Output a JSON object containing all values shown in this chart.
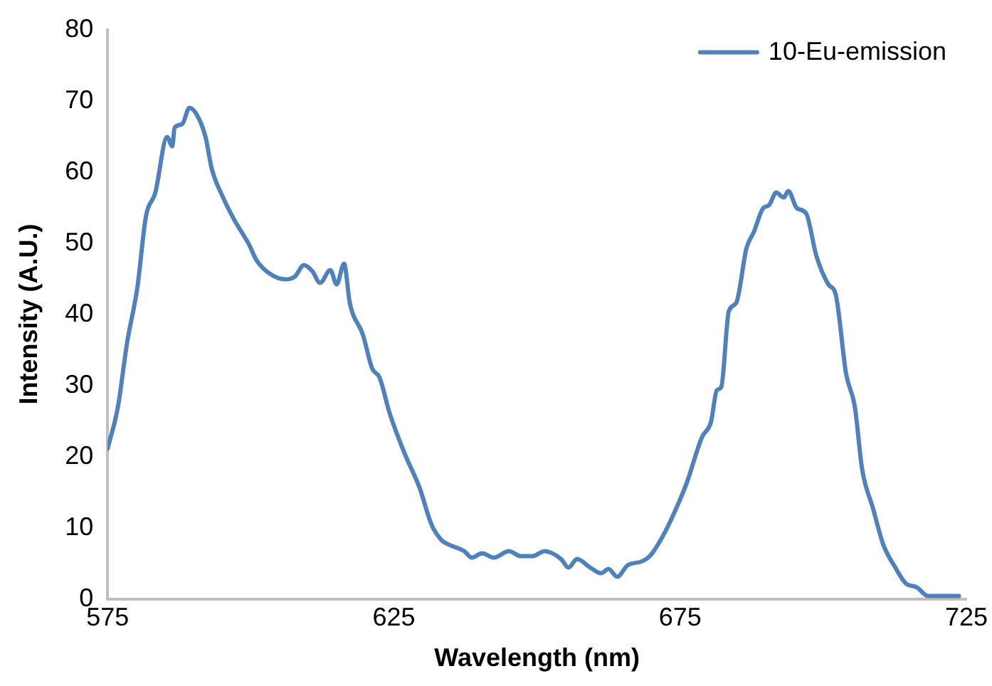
{
  "chart_data": {
    "type": "line",
    "xlabel": "Wavelength (nm)",
    "ylabel": "Intensity (A.U.)",
    "xlim": [
      575,
      725
    ],
    "xticks": [
      575,
      625,
      675,
      725
    ],
    "ylim": [
      0,
      80
    ],
    "yticks": [
      0,
      10,
      20,
      30,
      40,
      50,
      60,
      70,
      80
    ],
    "grid": false,
    "legend": "top right",
    "marker": "none",
    "line_style": "solid",
    "series": [
      {
        "name": "10-Eu-emission",
        "color": "#4f81bd",
        "x": [
          575,
          576.8,
          578.4,
          580.2,
          581.7,
          583.3,
          585.4,
          586.3,
          586.7,
          588,
          589.3,
          590.6,
          592.1,
          593.2,
          595,
          597.1,
          599.7,
          601,
          603.5,
          606.1,
          607.7,
          609.3,
          610.8,
          612.1,
          613.9,
          615,
          616.3,
          617.3,
          619.6,
          621.2,
          622.5,
          624.3,
          626.9,
          629.5,
          631.6,
          633.4,
          634.7,
          637.3,
          638.6,
          640.4,
          642.5,
          645.1,
          647.2,
          649.2,
          651.3,
          654.2,
          655.5,
          657,
          659.3,
          661.2,
          662.5,
          664,
          665.8,
          668.4,
          669.7,
          672.3,
          674.9,
          676.2,
          678.8,
          680.4,
          681.4,
          682.2,
          683.5,
          684.8,
          686.6,
          687.9,
          689.5,
          690.5,
          691.8,
          693.1,
          693.9,
          695.4,
          697,
          698.8,
          700.9,
          702.2,
          704,
          705.5,
          706.8,
          708.7,
          710.5,
          712.6,
          714.4,
          716.4,
          718.3,
          720.3,
          723.7
        ],
        "values": [
          21.1,
          27,
          36,
          43.8,
          53.8,
          57,
          64.9,
          63.6,
          66.2,
          66.7,
          69,
          68,
          64.9,
          60.4,
          56.7,
          53.3,
          49.8,
          47.6,
          45.6,
          44.9,
          45.3,
          46.9,
          46,
          44.4,
          46.2,
          44.2,
          47.1,
          41.6,
          37.1,
          32.4,
          31.1,
          26,
          20.4,
          15.6,
          10.4,
          8.2,
          7.6,
          6.7,
          5.8,
          6.4,
          5.8,
          6.7,
          6,
          6,
          6.7,
          5.6,
          4.4,
          5.6,
          4.4,
          3.6,
          4.2,
          3.1,
          4.7,
          5.3,
          6,
          9.3,
          13.8,
          16.4,
          22.7,
          24.9,
          29.3,
          29.8,
          40.4,
          41.6,
          49.3,
          51.6,
          54.9,
          55.3,
          57.1,
          56.4,
          57.3,
          54.9,
          54.2,
          48.2,
          44.2,
          42.7,
          31.6,
          27.1,
          18.2,
          12.7,
          7.6,
          4.4,
          2.2,
          1.6,
          0.4,
          0.4,
          0.4
        ]
      }
    ]
  }
}
